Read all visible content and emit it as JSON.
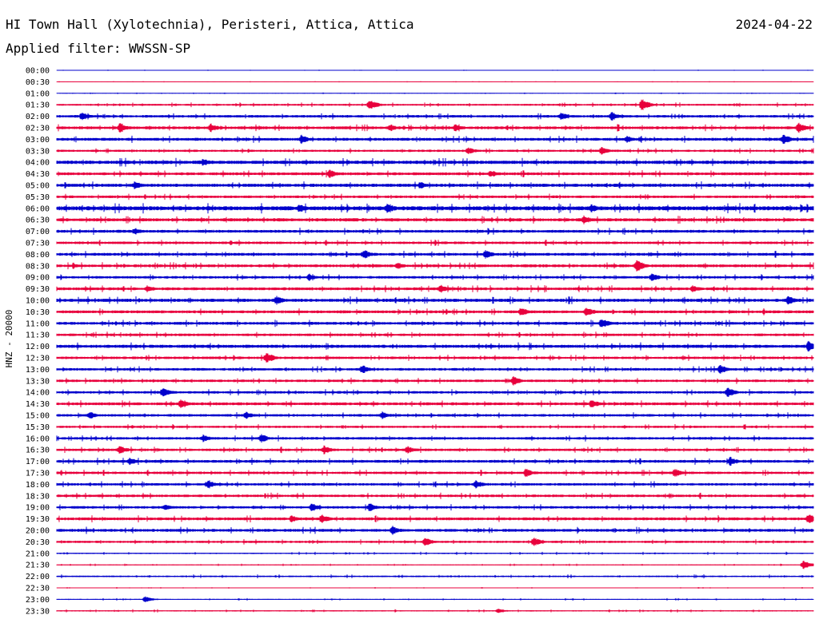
{
  "header": {
    "station": "HI Town Hall (Xylotechnia), Peristeri, Attica, Attica",
    "date": "2024-04-22",
    "filter": "Applied filter: WWSSN-SP"
  },
  "chart_data": {
    "type": "line",
    "description_kind": "helicorder",
    "ylabel": "HNZ - 20000",
    "row_labels": [
      "00:00",
      "00:30",
      "01:00",
      "01:30",
      "02:00",
      "02:30",
      "03:00",
      "03:30",
      "04:00",
      "04:30",
      "05:00",
      "05:30",
      "06:00",
      "06:30",
      "07:00",
      "07:30",
      "08:00",
      "08:30",
      "09:00",
      "09:30",
      "10:00",
      "10:30",
      "11:00",
      "11:30",
      "12:00",
      "12:30",
      "13:00",
      "13:30",
      "14:00",
      "14:30",
      "15:00",
      "15:30",
      "16:00",
      "16:30",
      "17:00",
      "17:30",
      "18:00",
      "18:30",
      "19:00",
      "19:30",
      "20:00",
      "20:30",
      "21:00",
      "21:30",
      "22:00",
      "22:30",
      "23:00",
      "23:30"
    ],
    "colors": [
      "#0000cc",
      "#e8003c"
    ],
    "row_minutes": 30,
    "noise_amplitude": [
      0.3,
      0.3,
      0.4,
      1.2,
      1.6,
      1.8,
      1.8,
      1.4,
      2.2,
      1.8,
      2.0,
      1.6,
      2.6,
      2.0,
      1.8,
      1.6,
      1.8,
      1.8,
      1.6,
      1.8,
      2.0,
      1.8,
      1.8,
      1.6,
      2.0,
      1.6,
      1.6,
      1.6,
      1.6,
      1.8,
      1.6,
      1.4,
      1.6,
      1.6,
      1.8,
      1.6,
      1.6,
      1.6,
      1.6,
      1.8,
      1.8,
      1.4,
      0.8,
      0.6,
      1.0,
      0.4,
      0.6,
      0.8
    ],
    "events": [
      {
        "row": 3,
        "minute": 12.4,
        "amplitude": 7
      },
      {
        "row": 3,
        "minute": 23.2,
        "amplitude": 8
      },
      {
        "row": 4,
        "minute": 1.0,
        "amplitude": 6
      },
      {
        "row": 4,
        "minute": 20.0,
        "amplitude": 5
      },
      {
        "row": 4,
        "minute": 22.0,
        "amplitude": 6
      },
      {
        "row": 5,
        "minute": 2.5,
        "amplitude": 7
      },
      {
        "row": 5,
        "minute": 6.1,
        "amplitude": 6
      },
      {
        "row": 5,
        "minute": 13.2,
        "amplitude": 5
      },
      {
        "row": 5,
        "minute": 15.8,
        "amplitude": 5
      },
      {
        "row": 5,
        "minute": 29.4,
        "amplitude": 7
      },
      {
        "row": 6,
        "minute": 9.7,
        "amplitude": 6
      },
      {
        "row": 6,
        "minute": 22.6,
        "amplitude": 5
      },
      {
        "row": 6,
        "minute": 28.8,
        "amplitude": 7
      },
      {
        "row": 7,
        "minute": 16.3,
        "amplitude": 5
      },
      {
        "row": 7,
        "minute": 21.6,
        "amplitude": 5
      },
      {
        "row": 8,
        "minute": 5.8,
        "amplitude": 5
      },
      {
        "row": 9,
        "minute": 10.8,
        "amplitude": 6
      },
      {
        "row": 9,
        "minute": 17.2,
        "amplitude": 5
      },
      {
        "row": 10,
        "minute": 3.1,
        "amplitude": 6
      },
      {
        "row": 10,
        "minute": 14.4,
        "amplitude": 5
      },
      {
        "row": 12,
        "minute": 9.6,
        "amplitude": 6
      },
      {
        "row": 12,
        "minute": 13.1,
        "amplitude": 7
      },
      {
        "row": 12,
        "minute": 21.2,
        "amplitude": 6
      },
      {
        "row": 13,
        "minute": 20.9,
        "amplitude": 6
      },
      {
        "row": 14,
        "minute": 3.1,
        "amplitude": 5
      },
      {
        "row": 16,
        "minute": 12.2,
        "amplitude": 6
      },
      {
        "row": 16,
        "minute": 17.0,
        "amplitude": 6
      },
      {
        "row": 17,
        "minute": 13.5,
        "amplitude": 5
      },
      {
        "row": 17,
        "minute": 23.0,
        "amplitude": 8
      },
      {
        "row": 18,
        "minute": 10.0,
        "amplitude": 5
      },
      {
        "row": 18,
        "minute": 23.6,
        "amplitude": 6
      },
      {
        "row": 19,
        "minute": 3.6,
        "amplitude": 5
      },
      {
        "row": 19,
        "minute": 15.2,
        "amplitude": 6
      },
      {
        "row": 19,
        "minute": 25.2,
        "amplitude": 5
      },
      {
        "row": 20,
        "minute": 8.7,
        "amplitude": 6
      },
      {
        "row": 20,
        "minute": 29.0,
        "amplitude": 6
      },
      {
        "row": 21,
        "minute": 18.4,
        "amplitude": 6
      },
      {
        "row": 21,
        "minute": 21.0,
        "amplitude": 6
      },
      {
        "row": 22,
        "minute": 21.6,
        "amplitude": 7
      },
      {
        "row": 24,
        "minute": 29.8,
        "amplitude": 7
      },
      {
        "row": 25,
        "minute": 8.3,
        "amplitude": 7
      },
      {
        "row": 26,
        "minute": 12.1,
        "amplitude": 6
      },
      {
        "row": 26,
        "minute": 26.3,
        "amplitude": 6
      },
      {
        "row": 27,
        "minute": 18.1,
        "amplitude": 6
      },
      {
        "row": 28,
        "minute": 4.2,
        "amplitude": 7
      },
      {
        "row": 28,
        "minute": 26.6,
        "amplitude": 7
      },
      {
        "row": 29,
        "minute": 4.9,
        "amplitude": 6
      },
      {
        "row": 29,
        "minute": 21.2,
        "amplitude": 6
      },
      {
        "row": 30,
        "minute": 1.3,
        "amplitude": 5
      },
      {
        "row": 30,
        "minute": 7.5,
        "amplitude": 5
      },
      {
        "row": 30,
        "minute": 12.9,
        "amplitude": 5
      },
      {
        "row": 32,
        "minute": 5.8,
        "amplitude": 5
      },
      {
        "row": 32,
        "minute": 8.1,
        "amplitude": 6
      },
      {
        "row": 33,
        "minute": 2.5,
        "amplitude": 6
      },
      {
        "row": 33,
        "minute": 10.6,
        "amplitude": 6
      },
      {
        "row": 33,
        "minute": 13.9,
        "amplitude": 5
      },
      {
        "row": 34,
        "minute": 2.9,
        "amplitude": 5
      },
      {
        "row": 34,
        "minute": 26.7,
        "amplitude": 6
      },
      {
        "row": 35,
        "minute": 18.6,
        "amplitude": 6
      },
      {
        "row": 35,
        "minute": 24.5,
        "amplitude": 6
      },
      {
        "row": 36,
        "minute": 6.0,
        "amplitude": 6
      },
      {
        "row": 36,
        "minute": 16.6,
        "amplitude": 6
      },
      {
        "row": 38,
        "minute": 4.3,
        "amplitude": 5
      },
      {
        "row": 38,
        "minute": 10.1,
        "amplitude": 6
      },
      {
        "row": 38,
        "minute": 12.4,
        "amplitude": 6
      },
      {
        "row": 39,
        "minute": 9.3,
        "amplitude": 5
      },
      {
        "row": 39,
        "minute": 10.5,
        "amplitude": 6
      },
      {
        "row": 39,
        "minute": 29.8,
        "amplitude": 7
      },
      {
        "row": 40,
        "minute": 13.3,
        "amplitude": 6
      },
      {
        "row": 41,
        "minute": 14.6,
        "amplitude": 6
      },
      {
        "row": 41,
        "minute": 18.9,
        "amplitude": 6
      },
      {
        "row": 43,
        "minute": 29.6,
        "amplitude": 6
      },
      {
        "row": 46,
        "minute": 3.5,
        "amplitude": 4
      },
      {
        "row": 47,
        "minute": 17.5,
        "amplitude": 3
      }
    ]
  }
}
